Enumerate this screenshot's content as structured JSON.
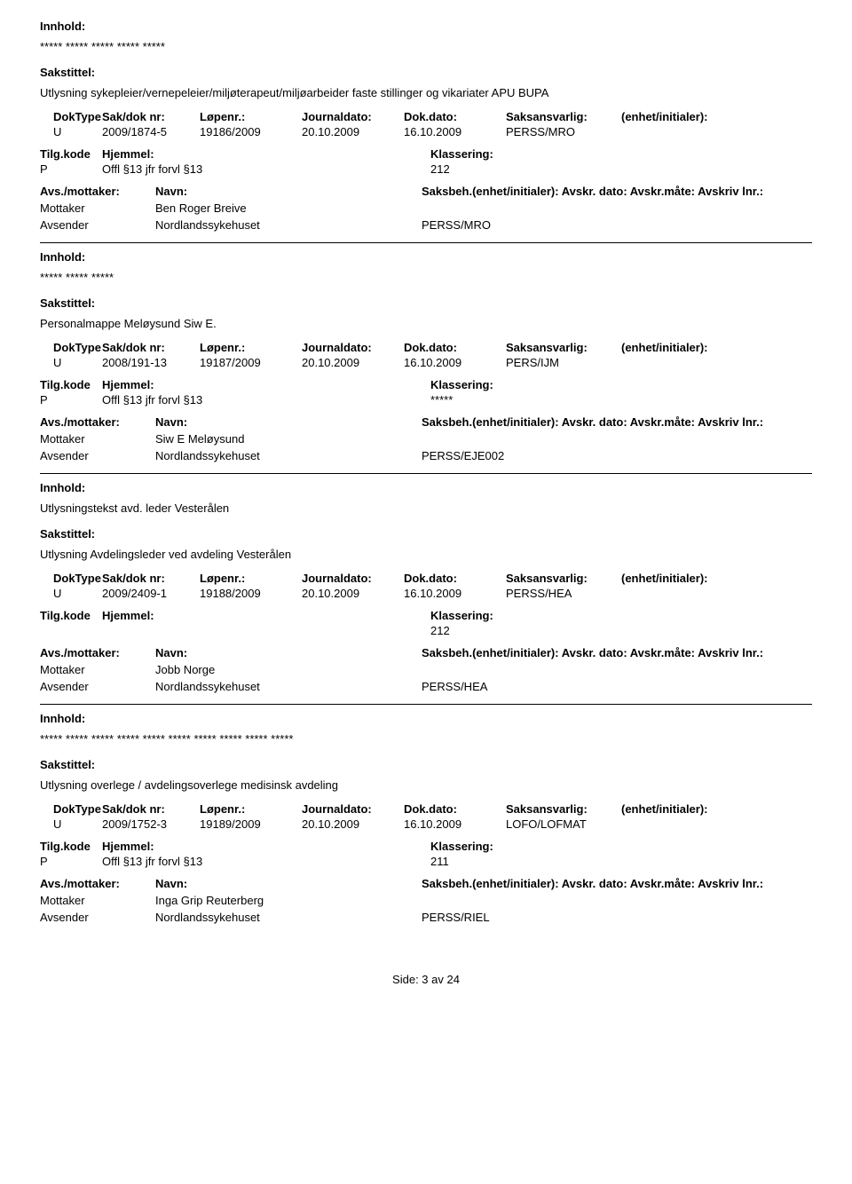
{
  "labels": {
    "innhold": "Innhold:",
    "sakstittel": "Sakstittel:",
    "doktype": "DokType",
    "saknr": "Sak/dok nr:",
    "lopenr": "Løpenr.:",
    "journaldato": "Journaldato:",
    "dokdato": "Dok.dato:",
    "saksansvarlig": "Saksansvarlig:",
    "enhet": "(enhet/initialer):",
    "tilgkode": "Tilg.kode",
    "hjemmel": "Hjemmel:",
    "klassering": "Klassering:",
    "avsmottaker": "Avs./mottaker:",
    "navn": "Navn:",
    "saksbeh": "Saksbeh.(enhet/initialer): Avskr. dato: Avskr.måte: Avskriv lnr.:",
    "mottaker": "Mottaker",
    "avsender": "Avsender"
  },
  "records": [
    {
      "innhold": "***** ***** ***** ***** *****",
      "sakstittel": "Utlysning sykepleier/vernepeleier/miljøterapeut/miljøarbeider faste stillinger og vikariater APU BUPA",
      "doktype": "U",
      "saknr": "2009/1874-5",
      "lopenr": "19186/2009",
      "journaldato": "20.10.2009",
      "dokdato": "16.10.2009",
      "saksansvarlig": "PERSS/MRO",
      "tilgkode": "P",
      "hjemmel": "Offl §13 jfr forvl §13",
      "klassering": "212",
      "mottaker": "Ben Roger Breive",
      "avsender": "Nordlandssykehuset",
      "avsender_unit": "PERSS/MRO"
    },
    {
      "innhold": "***** ***** *****",
      "sakstittel": "Personalmappe Meløysund Siw E.",
      "doktype": "U",
      "saknr": "2008/191-13",
      "lopenr": "19187/2009",
      "journaldato": "20.10.2009",
      "dokdato": "16.10.2009",
      "saksansvarlig": "PERS/IJM",
      "tilgkode": "P",
      "hjemmel": "Offl §13 jfr forvl §13",
      "klassering": "*****",
      "mottaker": "Siw E Meløysund",
      "avsender": "Nordlandssykehuset",
      "avsender_unit": "PERSS/EJE002"
    },
    {
      "innhold": "Utlysningstekst avd. leder Vesterålen",
      "sakstittel": "Utlysning Avdelingsleder ved avdeling Vesterålen",
      "doktype": "U",
      "saknr": "2009/2409-1",
      "lopenr": "19188/2009",
      "journaldato": "20.10.2009",
      "dokdato": "16.10.2009",
      "saksansvarlig": "PERSS/HEA",
      "tilgkode": "",
      "hjemmel": "",
      "klassering": "212",
      "mottaker": "Jobb Norge",
      "avsender": "Nordlandssykehuset",
      "avsender_unit": "PERSS/HEA"
    },
    {
      "innhold": "***** ***** ***** ***** ***** ***** ***** ***** ***** *****",
      "sakstittel": "Utlysning overlege / avdelingsoverlege medisinsk avdeling",
      "doktype": "U",
      "saknr": "2009/1752-3",
      "lopenr": "19189/2009",
      "journaldato": "20.10.2009",
      "dokdato": "16.10.2009",
      "saksansvarlig": "LOFO/LOFMAT",
      "tilgkode": "P",
      "hjemmel": "Offl §13 jfr forvl §13",
      "klassering": "211",
      "mottaker": "Inga Grip Reuterberg",
      "avsender": "Nordlandssykehuset",
      "avsender_unit": "PERSS/RIEL"
    }
  ],
  "footer": "Side: 3 av 24"
}
